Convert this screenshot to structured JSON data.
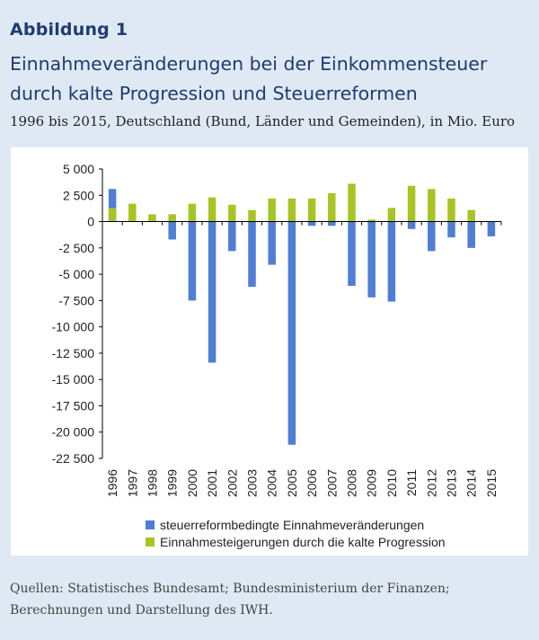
{
  "header": {
    "figure_label": "Abbildung 1",
    "title_line1": "Einnahmeveränderungen bei der Einkommensteuer",
    "title_line2": "durch kalte Progression und Steuerreformen",
    "subtitle": "1996 bis 2015, Deutschland (Bund, Länder und Gemeinden), in Mio. Euro"
  },
  "source": {
    "line1": "Quellen: Statistisches Bundesamt; Bundesministerium der Finanzen;",
    "line2": "Berechnungen und Darstellung des IWH."
  },
  "colors": {
    "blue": "#4f7ed4",
    "green": "#a6c524",
    "title": "#1f3b70",
    "background": "#dfe9f4"
  },
  "chart_data": {
    "type": "bar",
    "stacked": true,
    "categories": [
      "1996",
      "1997",
      "1998",
      "1999",
      "2000",
      "2001",
      "2002",
      "2003",
      "2004",
      "2005",
      "2006",
      "2007",
      "2008",
      "2009",
      "2010",
      "2011",
      "2012",
      "2013",
      "2014",
      "2015"
    ],
    "series": [
      {
        "name": "steuerreformbedingte Einnahmeveränderungen",
        "color": "#4f7ed4",
        "values": [
          3100,
          800,
          200,
          -1700,
          -7500,
          -13400,
          -2800,
          -6200,
          -4100,
          -21200,
          -400,
          -400,
          -6100,
          -7200,
          -7600,
          -700,
          -2800,
          -1500,
          -2500,
          -1400
        ]
      },
      {
        "name": "Einnahmesteigerungen durch die kalte Progression",
        "color": "#a6c524",
        "values": [
          1300,
          1700,
          700,
          700,
          1700,
          2300,
          1600,
          1100,
          2200,
          2200,
          2200,
          2700,
          3600,
          200,
          1300,
          3400,
          3100,
          2200,
          1100,
          0
        ]
      }
    ],
    "y_ticks": [
      5000,
      2500,
      0,
      -2500,
      -5000,
      -7500,
      -10000,
      -12500,
      -15000,
      -17500,
      -20000,
      -22500
    ],
    "y_tick_labels": [
      "5 000",
      "2 500",
      "0",
      "-2 500",
      "-5 000",
      "-7 500",
      "-10 000",
      "-12 500",
      "-15 000",
      "-17 500",
      "-20 000",
      "-22 500"
    ],
    "ylim": [
      -22500,
      5000
    ],
    "grid": false,
    "legend_position": "bottom"
  }
}
